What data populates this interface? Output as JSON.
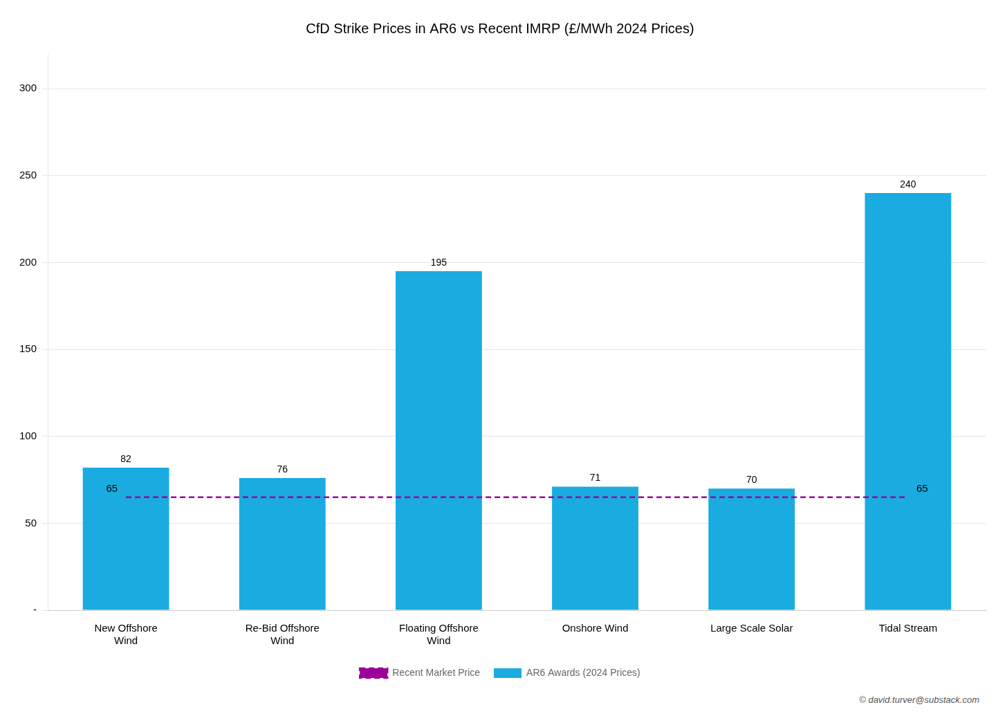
{
  "chart_data": {
    "type": "bar",
    "title": "CfD Strike Prices in AR6 vs Recent IMRP (£/MWh 2024 Prices)",
    "categories": [
      "New Offshore\nWind",
      "Re-Bid Offshore\nWind",
      "Floating Offshore\nWind",
      "Onshore Wind",
      "Large Scale Solar",
      "Tidal Stream"
    ],
    "series": [
      {
        "name": "AR6 Awards (2024 Prices)",
        "type": "bar",
        "color": "#1AACE0",
        "values": [
          82,
          76,
          195,
          71,
          70,
          240
        ]
      },
      {
        "name": "Recent Market Price",
        "type": "line",
        "color": "#9B009B",
        "line_style": "dashed",
        "values": [
          65,
          65,
          65,
          65,
          65,
          65
        ]
      }
    ],
    "ylim": [
      0,
      320
    ],
    "yticks": [
      {
        "value": 0,
        "label": "-"
      },
      50,
      100,
      150,
      200,
      250,
      300
    ],
    "grid": true,
    "legend": "bottom",
    "data_labels": true,
    "annotations": [
      {
        "text": "65",
        "y": 65
      },
      {
        "text": "65",
        "y": 65
      }
    ],
    "watermark": "© david.turver@substack.com"
  }
}
